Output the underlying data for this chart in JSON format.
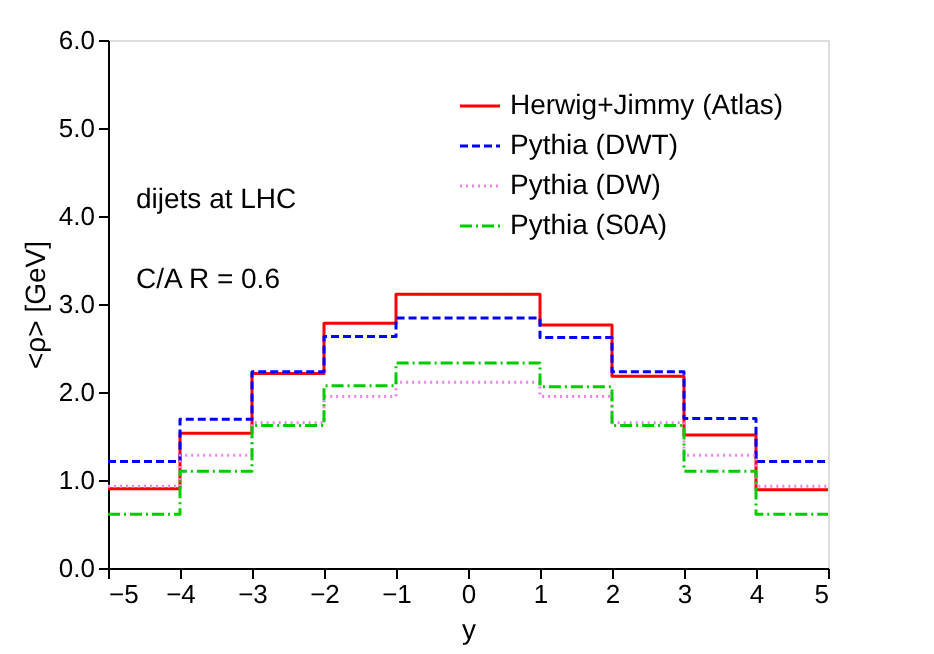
{
  "chart_data": {
    "type": "histogram",
    "xlabel": "y",
    "ylabel": "<ρ> [GeV]",
    "bins": [
      -5,
      -4,
      -3,
      -2,
      -1,
      0,
      1,
      2,
      3,
      4,
      5
    ],
    "series": [
      {
        "name": "Herwig+Jimmy (Atlas)",
        "color": "#ff0000",
        "line_style": "solid",
        "values": [
          0.9,
          1.53,
          2.21,
          2.78,
          3.11,
          3.11,
          2.76,
          2.18,
          1.51,
          0.89
        ]
      },
      {
        "name": "Pythia (DWT)",
        "color": "#0000ff",
        "line_style": "dashed",
        "values": [
          1.21,
          1.69,
          2.23,
          2.63,
          2.84,
          2.84,
          2.62,
          2.23,
          1.7,
          1.21
        ]
      },
      {
        "name": "Pythia (DW)",
        "color": "#ee82ee",
        "line_style": "dotted",
        "values": [
          0.93,
          1.28,
          1.65,
          1.95,
          2.11,
          2.11,
          1.95,
          1.65,
          1.28,
          0.93
        ]
      },
      {
        "name": "Pythia (S0A)",
        "color": "#00cc00",
        "line_style": "dashdot",
        "values": [
          0.61,
          1.1,
          1.62,
          2.07,
          2.33,
          2.33,
          2.06,
          1.62,
          1.1,
          0.61
        ]
      }
    ],
    "xlim": [
      -5,
      5
    ],
    "xticks": [
      -5,
      -4,
      -3,
      -2,
      -1,
      0,
      1,
      2,
      3,
      4,
      5
    ],
    "ylim": [
      0,
      6
    ],
    "yticks": [
      {
        "value": 0,
        "label": "0.0"
      },
      {
        "value": 1,
        "label": "1.0"
      },
      {
        "value": 2,
        "label": "2.0"
      },
      {
        "value": 3,
        "label": "3.0"
      },
      {
        "value": 4,
        "label": "4.0"
      },
      {
        "value": 5,
        "label": "5.0"
      },
      {
        "value": 6,
        "label": "6.0"
      }
    ],
    "annotations": [
      "dijets at LHC",
      "C/A R = 0.6"
    ],
    "grid": false,
    "legend": "top right"
  }
}
